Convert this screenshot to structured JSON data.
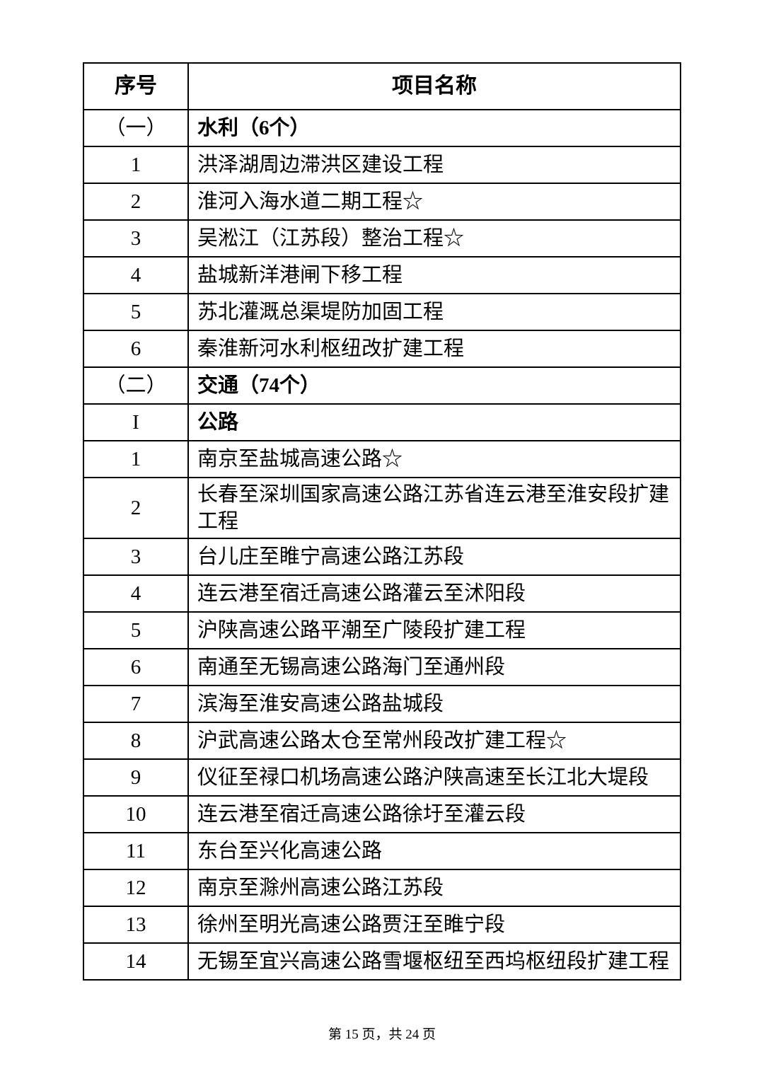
{
  "table": {
    "headers": {
      "num": "序号",
      "name": "项目名称"
    },
    "rows": [
      {
        "num": "（一）",
        "name": "水利（6个）",
        "bold": true
      },
      {
        "num": "1",
        "name": "洪泽湖周边滞洪区建设工程",
        "bold": false
      },
      {
        "num": "2",
        "name": "淮河入海水道二期工程☆",
        "bold": false
      },
      {
        "num": "3",
        "name": "吴淞江（江苏段）整治工程☆",
        "bold": false
      },
      {
        "num": "4",
        "name": "盐城新洋港闸下移工程",
        "bold": false
      },
      {
        "num": "5",
        "name": "苏北灌溉总渠堤防加固工程",
        "bold": false
      },
      {
        "num": "6",
        "name": "秦淮新河水利枢纽改扩建工程",
        "bold": false
      },
      {
        "num": "（二）",
        "name": "交通（74个）",
        "bold": true
      },
      {
        "num": "I",
        "name": "公路",
        "bold": true
      },
      {
        "num": "1",
        "name": "南京至盐城高速公路☆",
        "bold": false
      },
      {
        "num": "2",
        "name": "长春至深圳国家高速公路江苏省连云港至淮安段扩建工程",
        "bold": false
      },
      {
        "num": "3",
        "name": "台儿庄至睢宁高速公路江苏段",
        "bold": false
      },
      {
        "num": "4",
        "name": "连云港至宿迁高速公路灌云至沭阳段",
        "bold": false
      },
      {
        "num": "5",
        "name": "沪陕高速公路平潮至广陵段扩建工程",
        "bold": false
      },
      {
        "num": "6",
        "name": "南通至无锡高速公路海门至通州段",
        "bold": false
      },
      {
        "num": "7",
        "name": "滨海至淮安高速公路盐城段",
        "bold": false
      },
      {
        "num": "8",
        "name": "沪武高速公路太仓至常州段改扩建工程☆",
        "bold": false
      },
      {
        "num": "9",
        "name": "仪征至禄口机场高速公路沪陕高速至长江北大堤段",
        "bold": false
      },
      {
        "num": "10",
        "name": "连云港至宿迁高速公路徐圩至灌云段",
        "bold": false
      },
      {
        "num": "11",
        "name": "东台至兴化高速公路",
        "bold": false
      },
      {
        "num": "12",
        "name": "南京至滁州高速公路江苏段",
        "bold": false
      },
      {
        "num": "13",
        "name": "徐州至明光高速公路贾汪至睢宁段",
        "bold": false
      },
      {
        "num": "14",
        "name": "无锡至宜兴高速公路雪堰枢纽至西坞枢纽段扩建工程",
        "bold": false
      }
    ]
  },
  "footer": {
    "page_info": "第 15 页，共 24 页"
  }
}
